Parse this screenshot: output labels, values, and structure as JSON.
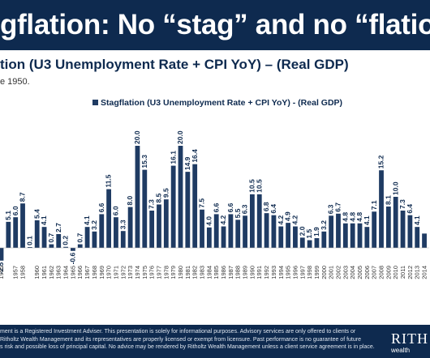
{
  "header": {
    "title": "gflation: No “stag” and no “flation”"
  },
  "subtitle": "tion (U3 Unemployment Rate + CPI YoY) – (Real GDP)",
  "subnote": "e 1950.",
  "footer": {
    "disclaimer_lines": [
      "ment is a Registered Investment Adviser. This presentation is solely for informational purposes. Advisory services are only offered to clients or",
      "Ritholtz Wealth Management and its representatives are properly licensed or exempt from licensure. Past performance is no guarantee of future",
      "s risk and possible loss of principal capital. No advice may be rendered by Ritholtz Wealth Management unless a client service agreement is in place."
    ],
    "logo_text": "RITH",
    "logo_sub": "wealth"
  },
  "colors": {
    "header_bg": "#0e2a4f",
    "bar": "#1f3b63",
    "text": "#0e2a4f"
  },
  "chart_data": {
    "type": "bar",
    "legend": "Stagflation (U3 Unemployment Rate + CPI YoY) - (Real GDP)",
    "legend_position": "top-center",
    "categories": [
      "1955",
      "1956",
      "1957",
      "1958",
      "1959",
      "1960",
      "1961",
      "1962",
      "1963",
      "1964",
      "1965",
      "1966",
      "1967",
      "1968",
      "1969",
      "1970",
      "1971",
      "1972",
      "1973",
      "1974",
      "1975",
      "1976",
      "1977",
      "1978",
      "1979",
      "1980",
      "1981",
      "1982",
      "1983",
      "1984",
      "1985",
      "1986",
      "1987",
      "1988",
      "1989",
      "1990",
      "1991",
      "1992",
      "1993",
      "1994",
      "1995",
      "1996",
      "1997",
      "1998",
      "1999",
      "2000",
      "2001",
      "2002",
      "2003",
      "2004",
      "2005",
      "2006",
      "2007",
      "2008",
      "2009",
      "2010",
      "2011",
      "2012",
      "2013",
      "2014"
    ],
    "tick_labels": [
      "1955",
      "",
      "1957",
      "1958",
      "",
      "1960",
      "1961",
      "1962",
      "1963",
      "1964",
      "1965",
      "1966",
      "1967",
      "1968",
      "1969",
      "1970",
      "1971",
      "1972",
      "1973",
      "1974",
      "1975",
      "1976",
      "1977",
      "1978",
      "1979",
      "1980",
      "1981",
      "1982",
      "1983",
      "1984",
      "1985",
      "1986",
      "1987",
      "1988",
      "1989",
      "1990",
      "1991",
      "1992",
      "1993",
      "1994",
      "1995",
      "1996",
      "1997",
      "1998",
      "1999",
      "2000",
      "2001",
      "2002",
      "2003",
      "2004",
      "2005",
      "2006",
      "2007",
      "2008",
      "2009",
      "2010",
      "2011",
      "2012",
      "2013",
      "2014"
    ],
    "values": [
      -2.5,
      5.1,
      6.0,
      8.7,
      0.1,
      5.4,
      4.1,
      0.7,
      2.7,
      0.2,
      -0.6,
      0.7,
      4.1,
      3.2,
      6.6,
      11.5,
      6.0,
      3.3,
      8.0,
      20.0,
      15.3,
      7.3,
      8.5,
      9.5,
      16.1,
      20.0,
      14.9,
      16.4,
      7.5,
      4.0,
      6.6,
      4.2,
      6.6,
      5.5,
      6.3,
      10.5,
      10.5,
      6.8,
      6.4,
      4.2,
      4.9,
      4.2,
      2.0,
      1.5,
      1.9,
      3.2,
      6.3,
      6.7,
      4.8,
      4.8,
      4.8,
      4.1,
      7.1,
      15.2,
      8.1,
      10.0,
      7.3,
      6.4,
      4.1,
      2.8
    ],
    "value_labels": [
      "-2.5",
      "5.1",
      "6.0",
      "8.7",
      "0.1",
      "5.4",
      "4.1",
      "0.7",
      "2.7",
      "0.2",
      "-0.6",
      "0.7",
      "4.1",
      "3.2",
      "6.6",
      "11.5",
      "6.0",
      "3.3",
      "8.0",
      "20.0",
      "15.3",
      "7.3",
      "8.5",
      "9.5",
      "16.1",
      "20.0",
      "14.9",
      "16.4",
      "7.5",
      "4.0",
      "6.6",
      "4.2",
      "6.6",
      "5.5",
      "6.3",
      "10.5",
      "10.5",
      "6.8",
      "6.4",
      "4.2",
      "4.9",
      "4.2",
      "2.0",
      "1.5",
      "1.9",
      "3.2",
      "6.3",
      "6.7",
      "4.8",
      "4.8",
      "4.8",
      "4.1",
      "7.1",
      "15.2",
      "8.1",
      "10.0",
      "7.3",
      "6.4",
      "4.1",
      ""
    ],
    "ylim": [
      -3,
      21
    ],
    "grid": false
  }
}
